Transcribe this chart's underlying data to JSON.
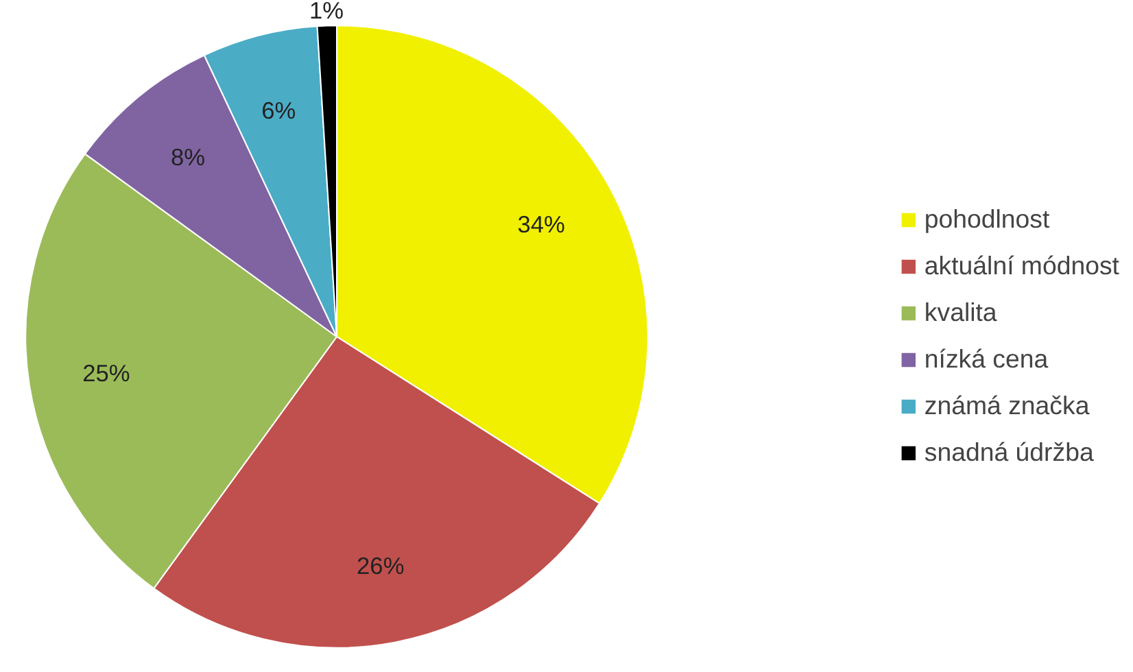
{
  "chart_data": {
    "type": "pie",
    "categories": [
      "pohodlnost",
      "aktuální módnost",
      "kvalita",
      "nízká cena",
      "známá značka",
      "snadná údržba"
    ],
    "values": [
      34,
      26,
      25,
      8,
      6,
      1
    ],
    "colors": [
      "#f0f000",
      "#c0504d",
      "#9bbb59",
      "#8064a2",
      "#4bacc6",
      "#000000"
    ],
    "value_labels": [
      "34%",
      "26%",
      "25%",
      "8%",
      "6%",
      "1%"
    ],
    "legend": "right"
  }
}
